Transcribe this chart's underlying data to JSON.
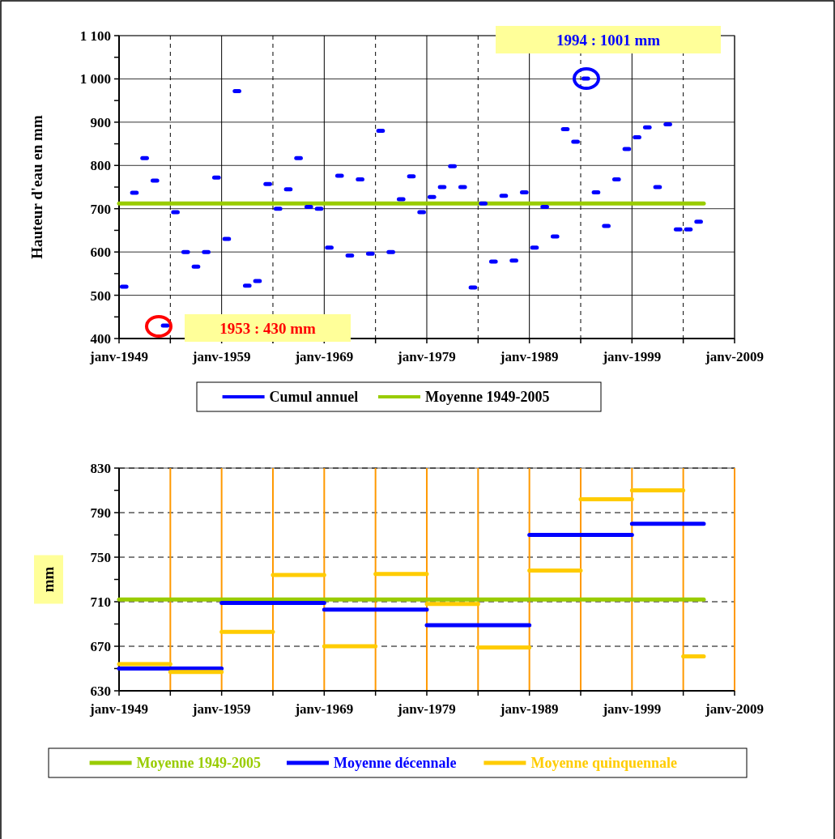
{
  "chart_data": [
    {
      "type": "scatter",
      "ylabel": "Hauteur d'eau en mm",
      "xlim": [
        "1949-01",
        "2009-01"
      ],
      "xticks": [
        {
          "value": "1949-01",
          "label": "janv-1949"
        },
        {
          "value": "1954-01",
          "label": null
        },
        {
          "value": "1959-01",
          "label": "janv-1959"
        },
        {
          "value": "1964-01",
          "label": null
        },
        {
          "value": "1969-01",
          "label": "janv-1969"
        },
        {
          "value": "1974-01",
          "label": null
        },
        {
          "value": "1979-01",
          "label": "janv-1979"
        },
        {
          "value": "1984-01",
          "label": null
        },
        {
          "value": "1989-01",
          "label": "janv-1989"
        },
        {
          "value": "1994-01",
          "label": null
        },
        {
          "value": "1999-01",
          "label": "janv-1999"
        },
        {
          "value": "2004-01",
          "label": null
        },
        {
          "value": "2009-01",
          "label": "janv-2009"
        }
      ],
      "ylim": [
        400,
        1100
      ],
      "yticks": [
        400,
        {
          "value": 450,
          "label": null
        },
        500,
        {
          "value": 550,
          "label": null
        },
        600,
        {
          "value": 650,
          "label": null
        },
        700,
        {
          "value": 750,
          "label": null
        },
        800,
        {
          "value": 850,
          "label": null
        },
        900,
        {
          "value": 950,
          "label": null
        },
        {
          "value": 1000,
          "label": "1 000"
        },
        {
          "value": 1050,
          "label": null
        },
        {
          "value": 1100,
          "label": "1 100"
        }
      ],
      "grid": true,
      "legend": "bottom",
      "annotations": [
        "1953 : 430 mm",
        "1994 : 1001 mm"
      ],
      "series": [
        {
          "name": "Cumul annuel",
          "color": "#0000ff",
          "x": [
            "1949-07",
            "1950-07",
            "1951-07",
            "1952-07",
            "1953-07",
            "1954-07",
            "1955-07",
            "1956-07",
            "1957-07",
            "1958-07",
            "1959-07",
            "1960-07",
            "1961-07",
            "1962-07",
            "1963-07",
            "1964-07",
            "1965-07",
            "1966-07",
            "1967-07",
            "1968-07",
            "1969-07",
            "1970-07",
            "1971-07",
            "1972-07",
            "1973-07",
            "1974-07",
            "1975-07",
            "1976-07",
            "1977-07",
            "1978-07",
            "1979-07",
            "1980-07",
            "1981-07",
            "1982-07",
            "1983-07",
            "1984-07",
            "1985-07",
            "1986-07",
            "1987-07",
            "1988-07",
            "1989-07",
            "1990-07",
            "1991-07",
            "1992-07",
            "1993-07",
            "1994-07",
            "1995-07",
            "1996-07",
            "1997-07",
            "1998-07",
            "1999-07",
            "2000-07",
            "2001-07",
            "2002-07",
            "2003-07",
            "2004-07",
            "2005-07"
          ],
          "values": [
            520,
            737,
            817,
            765,
            430,
            692,
            600,
            566,
            600,
            772,
            630,
            972,
            522,
            533,
            757,
            700,
            745,
            817,
            704,
            700,
            610,
            776,
            592,
            768,
            596,
            880,
            600,
            722,
            775,
            692,
            727,
            750,
            798,
            750,
            518,
            712,
            578,
            730,
            580,
            738,
            610,
            704,
            636,
            884,
            855,
            1001,
            738,
            660,
            768,
            838,
            865,
            888,
            750,
            895,
            652,
            652,
            670
          ]
        },
        {
          "name": "Moyenne 1949-2005",
          "type": "line",
          "color": "#99cc00",
          "x": [
            "1949-01",
            "2006-01"
          ],
          "values": [
            712,
            712
          ]
        }
      ]
    },
    {
      "type": "line",
      "ylabel": "mm",
      "xlim": [
        "1949-01",
        "2009-01"
      ],
      "xticks": [
        {
          "value": "1949-01",
          "label": "janv-1949"
        },
        {
          "value": "1954-01",
          "label": null
        },
        {
          "value": "1959-01",
          "label": "janv-1959"
        },
        {
          "value": "1964-01",
          "label": null
        },
        {
          "value": "1969-01",
          "label": "janv-1969"
        },
        {
          "value": "1974-01",
          "label": null
        },
        {
          "value": "1979-01",
          "label": "janv-1979"
        },
        {
          "value": "1984-01",
          "label": null
        },
        {
          "value": "1989-01",
          "label": "janv-1989"
        },
        {
          "value": "1994-01",
          "label": null
        },
        {
          "value": "1999-01",
          "label": "janv-1999"
        },
        {
          "value": "2004-01",
          "label": null
        },
        {
          "value": "2009-01",
          "label": "janv-2009"
        }
      ],
      "ylim": [
        630,
        830
      ],
      "yticks": [
        630,
        {
          "value": 650,
          "label": null
        },
        670,
        {
          "value": 690,
          "label": null
        },
        710,
        {
          "value": 730,
          "label": null
        },
        750,
        {
          "value": 770,
          "label": null
        },
        790,
        {
          "value": 810,
          "label": null
        },
        830
      ],
      "grid": true,
      "legend": "bottom",
      "series": [
        {
          "name": "Moyenne 1949-2005",
          "color": "#99cc00",
          "x": [
            "1949-01",
            "2006-01"
          ],
          "values": [
            712,
            712
          ]
        },
        {
          "name": "Moyenne décennale",
          "color": "#0000ff",
          "x": [
            "1949-01",
            "1959-01",
            null,
            "1959-01",
            "1969-01",
            null,
            "1969-01",
            "1979-01",
            null,
            "1979-01",
            "1989-01",
            null,
            "1989-01",
            "1999-01",
            null,
            "1999-01",
            "2006-01"
          ],
          "values": [
            650,
            650,
            null,
            709,
            709,
            null,
            703,
            703,
            null,
            689,
            689,
            null,
            770,
            770,
            null,
            780,
            780
          ]
        },
        {
          "name": "Moyenne quinquennale",
          "color": "#ffcc00",
          "x": [
            "1949-01",
            "1954-01",
            null,
            "1954-01",
            "1959-01",
            null,
            "1959-01",
            "1964-01",
            null,
            "1964-01",
            "1969-01",
            null,
            "1969-01",
            "1974-01",
            null,
            "1974-01",
            "1979-01",
            null,
            "1979-01",
            "1984-01",
            null,
            "1984-01",
            "1989-01",
            null,
            "1989-01",
            "1994-01",
            null,
            "1994-01",
            "1999-01",
            null,
            "1999-01",
            "2004-01",
            null,
            "2004-01",
            "2006-01"
          ],
          "values": [
            654,
            654,
            null,
            647,
            647,
            null,
            683,
            683,
            null,
            734,
            734,
            null,
            670,
            670,
            null,
            735,
            735,
            null,
            708,
            708,
            null,
            669,
            669,
            null,
            738,
            738,
            null,
            802,
            802,
            null,
            810,
            810,
            null,
            661,
            661
          ]
        }
      ]
    }
  ]
}
